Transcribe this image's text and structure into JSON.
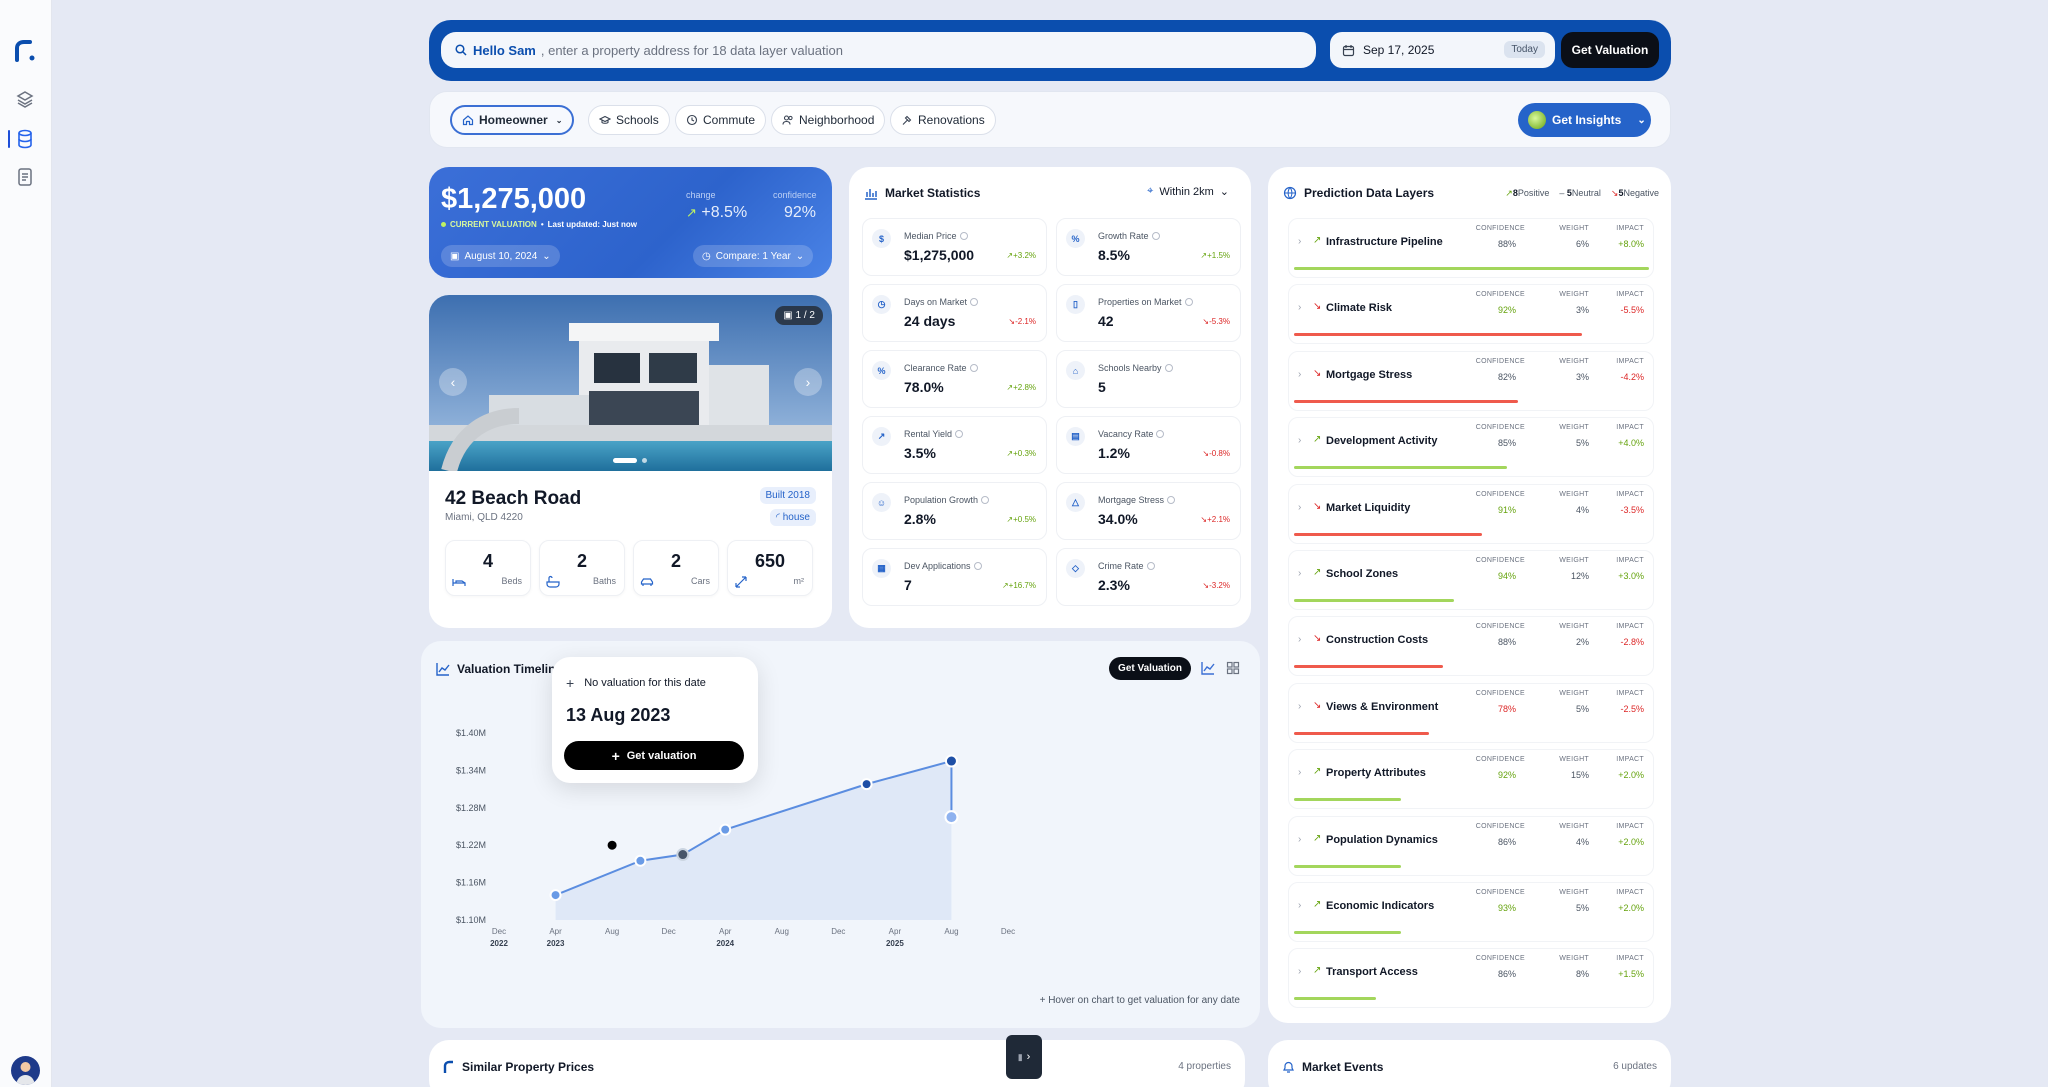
{
  "search": {
    "greeting": "Hello Sam",
    "placeholder": ", enter a property address for 18 data layer valuation"
  },
  "date_picker": {
    "date": "Sep 17, 2025",
    "today_label": "Today"
  },
  "top_get_valuation": "Get Valuation",
  "filters": [
    {
      "label": "Homeowner",
      "icon": "home-icon",
      "selected": true
    },
    {
      "label": "Schools",
      "icon": "graduation-cap-icon"
    },
    {
      "label": "Commute",
      "icon": "clock-icon"
    },
    {
      "label": "Neighborhood",
      "icon": "people-icon"
    },
    {
      "label": "Renovations",
      "icon": "hammer-icon"
    }
  ],
  "get_insights": "Get Insights",
  "valuation": {
    "price": "$1,275,000",
    "current_label": "CURRENT VALUATION",
    "last_updated": "Last updated: Just now",
    "change_label": "change",
    "change_value": "+8.5%",
    "confidence_label": "confidence",
    "confidence_value": "92%",
    "date_pill": "August 10, 2024",
    "compare_pill": "Compare: 1 Year"
  },
  "property": {
    "image_counter": "1 / 2",
    "address": "42 Beach Road",
    "city": "Miami, QLD 4220",
    "built": "Built 2018",
    "type": "house",
    "stats": [
      {
        "value": "4",
        "unit": "Beds",
        "icon": "bed-icon"
      },
      {
        "value": "2",
        "unit": "Baths",
        "icon": "bath-icon"
      },
      {
        "value": "2",
        "unit": "Cars",
        "icon": "car-icon"
      },
      {
        "value": "650",
        "unit": "m²",
        "icon": "expand-icon"
      }
    ]
  },
  "market": {
    "title": "Market Statistics",
    "radius": "Within 2km",
    "tiles": [
      {
        "label": "Median Price",
        "value": "$1,275,000",
        "change": "+3.2%",
        "dir": "up",
        "icon": "$"
      },
      {
        "label": "Growth Rate",
        "value": "8.5%",
        "change": "+1.5%",
        "dir": "up",
        "icon": "%"
      },
      {
        "label": "Days on Market",
        "value": "24 days",
        "change": "-2.1%",
        "dir": "down",
        "icon": "◷"
      },
      {
        "label": "Properties on Market",
        "value": "42",
        "change": "-5.3%",
        "dir": "down",
        "icon": "▯"
      },
      {
        "label": "Clearance Rate",
        "value": "78.0%",
        "change": "+2.8%",
        "dir": "up",
        "icon": "%"
      },
      {
        "label": "Schools Nearby",
        "value": "5",
        "change": "",
        "dir": "up",
        "icon": "⌂"
      },
      {
        "label": "Rental Yield",
        "value": "3.5%",
        "change": "+0.3%",
        "dir": "up",
        "icon": "↗"
      },
      {
        "label": "Vacancy Rate",
        "value": "1.2%",
        "change": "-0.8%",
        "dir": "down",
        "icon": "▤"
      },
      {
        "label": "Population Growth",
        "value": "2.8%",
        "change": "+0.5%",
        "dir": "up",
        "icon": "☺"
      },
      {
        "label": "Mortgage Stress",
        "value": "34.0%",
        "change": "+2.1%",
        "dir": "down",
        "icon": "△"
      },
      {
        "label": "Dev Applications",
        "value": "7",
        "change": "+16.7%",
        "dir": "up",
        "icon": "▦"
      },
      {
        "label": "Crime Rate",
        "value": "2.3%",
        "change": "-3.2%",
        "dir": "down",
        "icon": "◇"
      }
    ]
  },
  "prediction": {
    "title": "Prediction Data Layers",
    "positive_count": "8",
    "positive_label": "Positive",
    "neutral_count": "5",
    "neutral_label": "Neutral",
    "negative_count": "5",
    "negative_label": "Negative",
    "col_confidence": "CONFIDENCE",
    "col_weight": "WEIGHT",
    "col_impact": "IMPACT",
    "layers": [
      {
        "name": "Infrastructure Pipeline",
        "confidence": "88%",
        "weight": "6%",
        "impact": "+8.0%",
        "dir": "up",
        "bar": 1.0,
        "conf_hl": false
      },
      {
        "name": "Climate Risk",
        "confidence": "92%",
        "weight": "3%",
        "impact": "-5.5%",
        "dir": "down",
        "bar": 0.81,
        "conf_hl": true
      },
      {
        "name": "Mortgage Stress",
        "confidence": "82%",
        "weight": "3%",
        "impact": "-4.2%",
        "dir": "down",
        "bar": 0.63,
        "conf_hl": false
      },
      {
        "name": "Development Activity",
        "confidence": "85%",
        "weight": "5%",
        "impact": "+4.0%",
        "dir": "up",
        "bar": 0.6,
        "conf_hl": false
      },
      {
        "name": "Market Liquidity",
        "confidence": "91%",
        "weight": "4%",
        "impact": "-3.5%",
        "dir": "down",
        "bar": 0.53,
        "conf_hl": true
      },
      {
        "name": "School Zones",
        "confidence": "94%",
        "weight": "12%",
        "impact": "+3.0%",
        "dir": "up",
        "bar": 0.45,
        "conf_hl": true
      },
      {
        "name": "Construction Costs",
        "confidence": "88%",
        "weight": "2%",
        "impact": "-2.8%",
        "dir": "down",
        "bar": 0.42,
        "conf_hl": false
      },
      {
        "name": "Views & Environment",
        "confidence": "78%",
        "weight": "5%",
        "impact": "-2.5%",
        "dir": "down",
        "bar": 0.38,
        "conf_hl": "low"
      },
      {
        "name": "Property Attributes",
        "confidence": "92%",
        "weight": "15%",
        "impact": "+2.0%",
        "dir": "up",
        "bar": 0.3,
        "conf_hl": true
      },
      {
        "name": "Population Dynamics",
        "confidence": "86%",
        "weight": "4%",
        "impact": "+2.0%",
        "dir": "up",
        "bar": 0.3,
        "conf_hl": false
      },
      {
        "name": "Economic Indicators",
        "confidence": "93%",
        "weight": "5%",
        "impact": "+2.0%",
        "dir": "up",
        "bar": 0.3,
        "conf_hl": true
      },
      {
        "name": "Transport Access",
        "confidence": "86%",
        "weight": "8%",
        "impact": "+1.5%",
        "dir": "up",
        "bar": 0.23,
        "conf_hl": false
      }
    ]
  },
  "timeline": {
    "title": "Valuation Timeline",
    "get_valuation": "Get Valuation",
    "hint": "Hover on chart to get valuation for any date",
    "popup": {
      "no_val": "No valuation for this date",
      "date": "13 Aug 2023",
      "button": "Get valuation"
    }
  },
  "chart_data": {
    "type": "line",
    "ylim": [
      1.1,
      1.4
    ],
    "y_ticks": [
      "$1.40M",
      "$1.34M",
      "$1.28M",
      "$1.22M",
      "$1.16M",
      "$1.10M"
    ],
    "x_ticks": [
      {
        "m": "Dec",
        "y": "2022"
      },
      {
        "m": "Apr",
        "y": "2023"
      },
      {
        "m": "Aug",
        "y": ""
      },
      {
        "m": "Dec",
        "y": ""
      },
      {
        "m": "Apr",
        "y": "2024"
      },
      {
        "m": "Aug",
        "y": ""
      },
      {
        "m": "Dec",
        "y": ""
      },
      {
        "m": "Apr",
        "y": "2025"
      },
      {
        "m": "Aug",
        "y": ""
      },
      {
        "m": "Dec",
        "y": ""
      }
    ],
    "points": [
      {
        "x": "2023-04",
        "y": 1.14
      },
      {
        "x": "2023-10",
        "y": 1.195
      },
      {
        "x": "2024-01",
        "y": 1.205
      },
      {
        "x": "2024-04",
        "y": 1.245
      },
      {
        "x": "2025-02",
        "y": 1.318
      },
      {
        "x": "2025-08",
        "y": 1.355
      },
      {
        "x": "2025-08",
        "y": 1.265
      }
    ],
    "series": [
      {
        "name": "",
        "values": [
          1.14,
          1.195,
          1.205,
          1.245,
          1.318,
          1.355,
          1.265
        ]
      }
    ],
    "grid": false
  },
  "similar": {
    "title": "Similar Property Prices",
    "count": "4 properties"
  },
  "events": {
    "title": "Market Events",
    "count": "6 updates"
  },
  "colors": {
    "primary": "#0b4eae",
    "accent": "#2563c9",
    "positive": "#65a30d",
    "negative": "#dc2626"
  }
}
